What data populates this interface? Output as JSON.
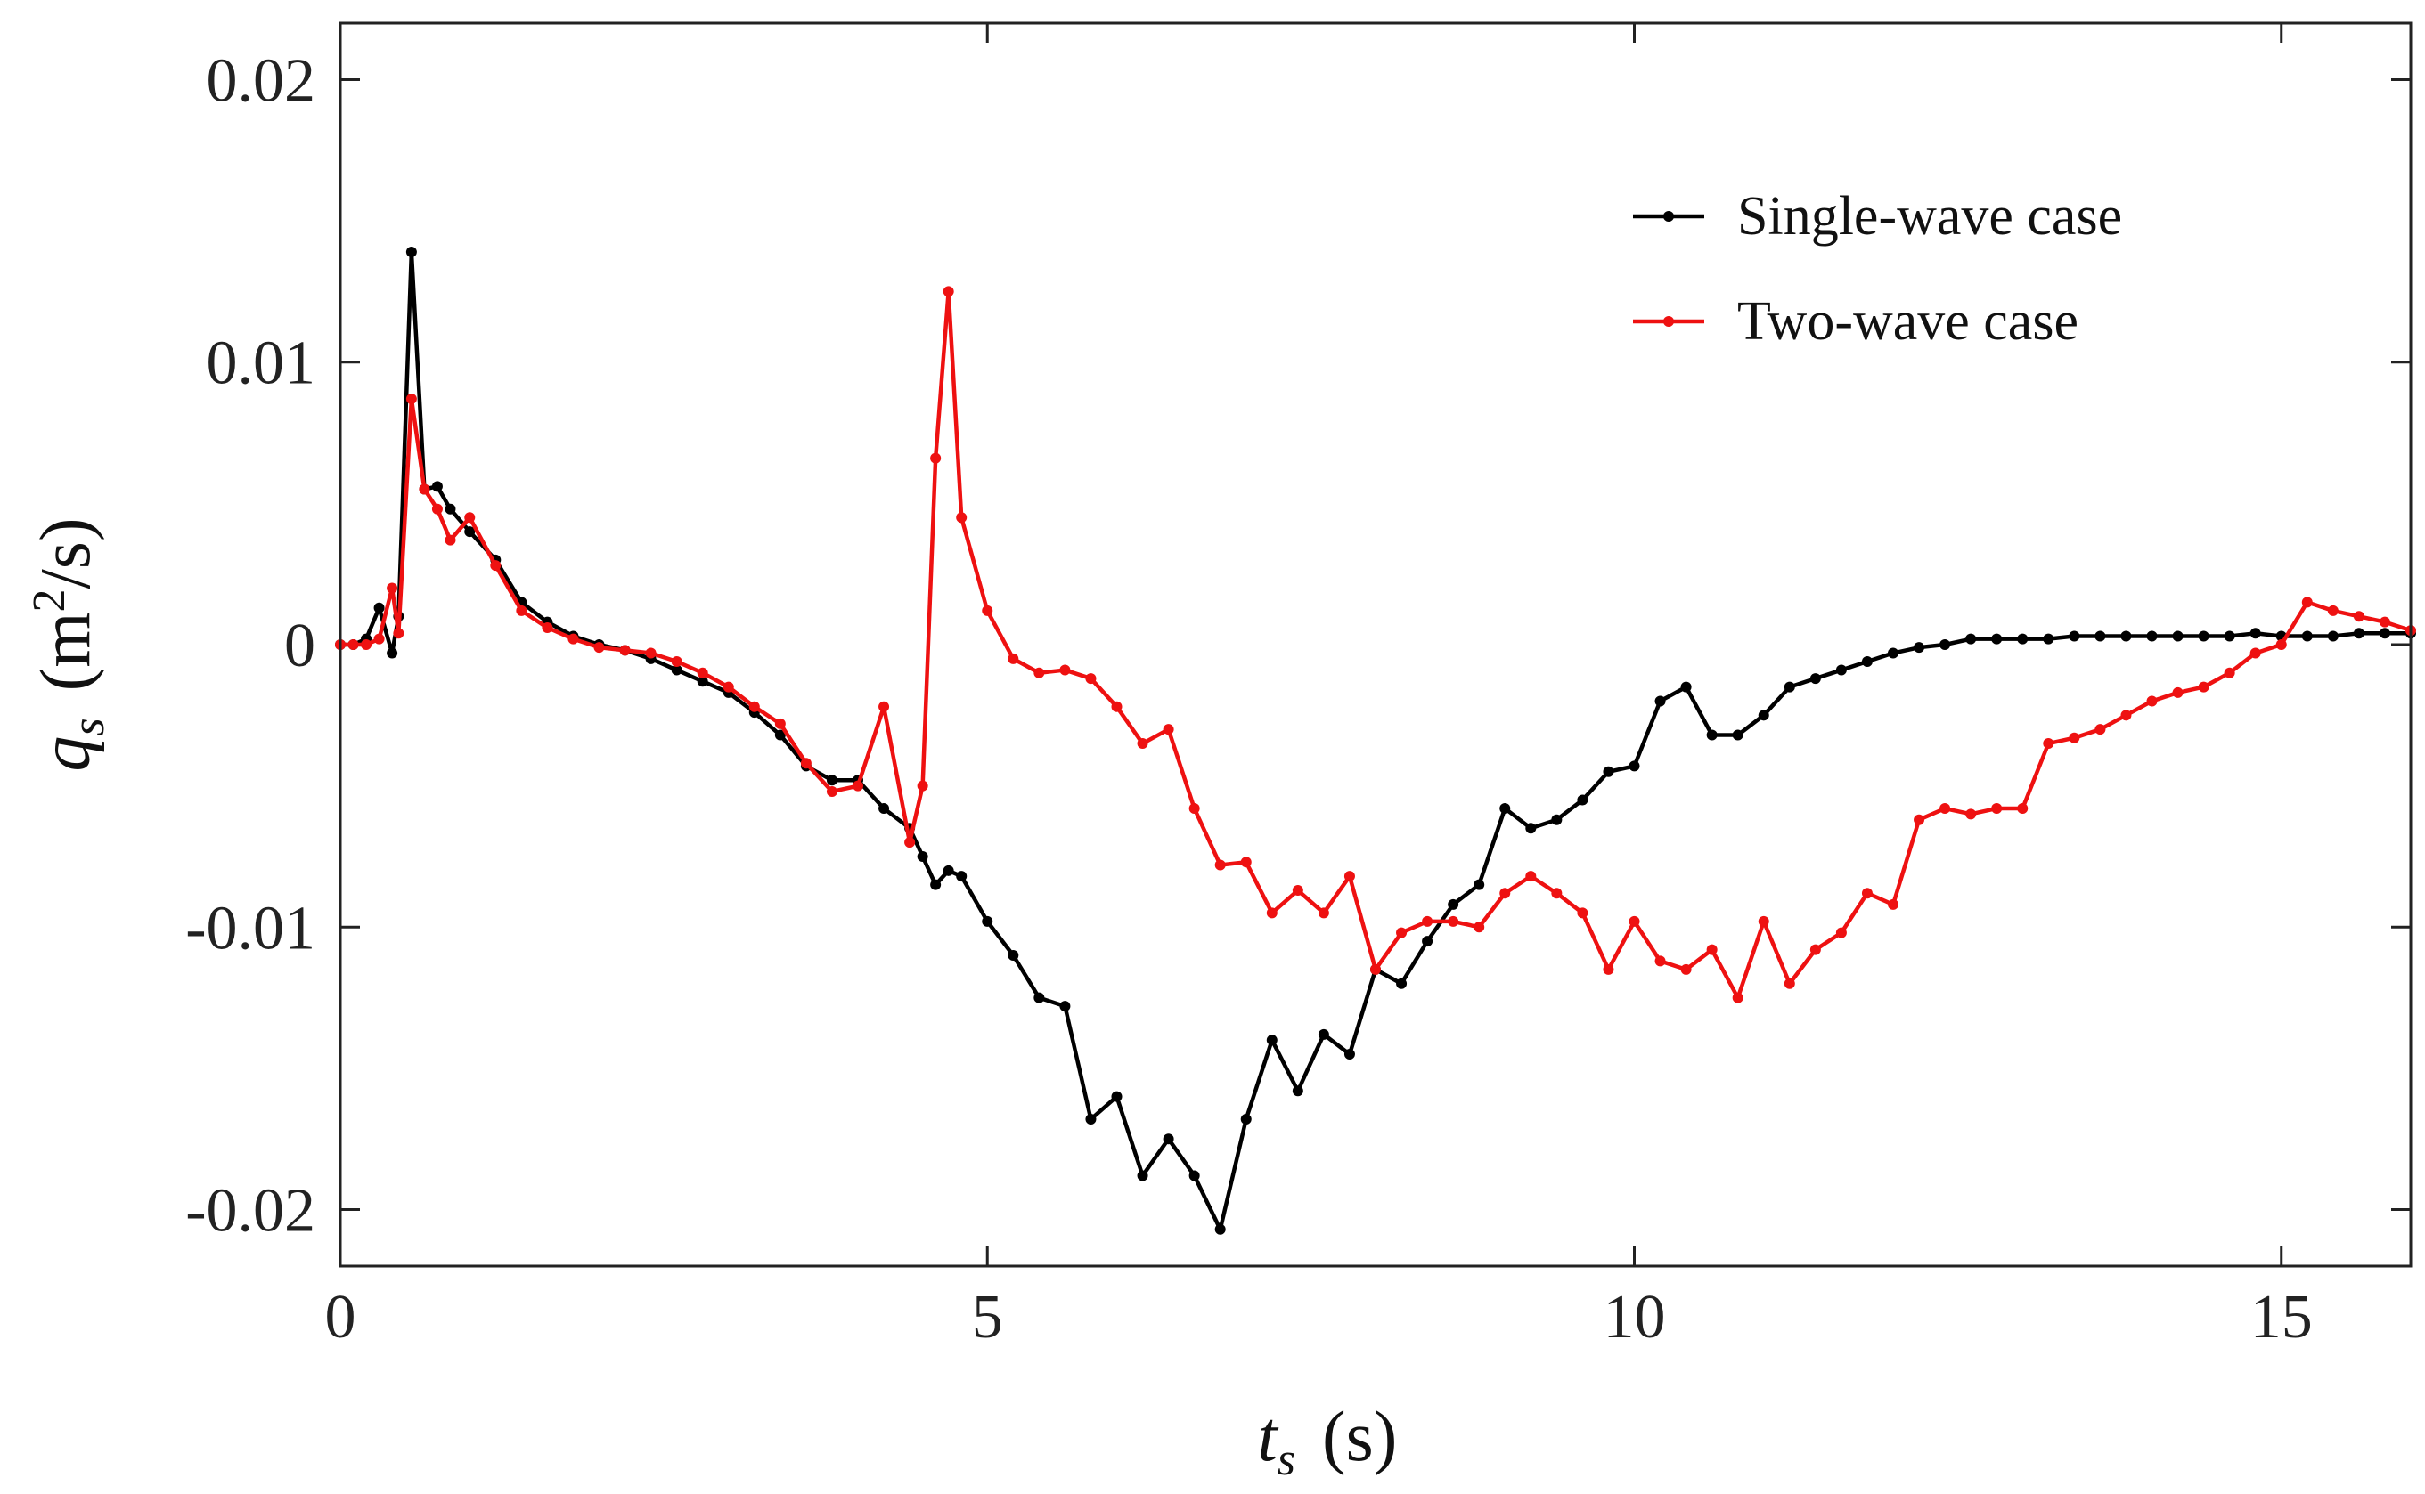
{
  "chart_data": {
    "type": "line",
    "xlabel": {
      "symbol": "t",
      "subscript": "s",
      "unit": "(s)"
    },
    "ylabel": {
      "symbol": "q",
      "subscript": "s",
      "unit_prefix": "(m",
      "superscript": "2",
      "unit_suffix": "/s)"
    },
    "xlim": [
      0,
      16
    ],
    "xticks": [
      0,
      5,
      10,
      15
    ],
    "ylim": [
      -0.022,
      0.022
    ],
    "yticks": [
      -0.02,
      -0.01,
      0,
      0.01,
      0.02
    ],
    "legend": "upper right",
    "x": [
      0,
      0.1,
      0.2,
      0.3,
      0.4,
      0.45,
      0.55,
      0.65,
      0.75,
      0.85,
      1.0,
      1.2,
      1.4,
      1.6,
      1.8,
      2.0,
      2.2,
      2.4,
      2.6,
      2.8,
      3.0,
      3.2,
      3.4,
      3.6,
      3.8,
      4.0,
      4.2,
      4.4,
      4.5,
      4.6,
      4.7,
      4.8,
      5.0,
      5.2,
      5.4,
      5.6,
      5.8,
      6.0,
      6.2,
      6.4,
      6.6,
      6.8,
      7.0,
      7.2,
      7.4,
      7.6,
      7.8,
      8.0,
      8.2,
      8.4,
      8.6,
      8.8,
      9.0,
      9.2,
      9.4,
      9.6,
      9.8,
      10.0,
      10.2,
      10.4,
      10.6,
      10.8,
      11.0,
      11.2,
      11.4,
      11.6,
      11.8,
      12.0,
      12.2,
      12.4,
      12.6,
      12.8,
      13.0,
      13.2,
      13.4,
      13.6,
      13.8,
      14.0,
      14.2,
      14.4,
      14.6,
      14.8,
      15.0,
      15.2,
      15.4,
      15.6,
      15.8,
      16.0
    ],
    "series": [
      {
        "name": "Single-wave case",
        "color": "#000000",
        "values": [
          0,
          0,
          0.0002,
          0.0013,
          -0.0003,
          0.001,
          0.0139,
          0.0055,
          0.0056,
          0.0048,
          0.004,
          0.003,
          0.0015,
          0.0008,
          0.0003,
          0,
          -0.0002,
          -0.0005,
          -0.0009,
          -0.0013,
          -0.0017,
          -0.0024,
          -0.0032,
          -0.0043,
          -0.0048,
          -0.0048,
          -0.0058,
          -0.0065,
          -0.0075,
          -0.0085,
          -0.008,
          -0.0082,
          -0.0098,
          -0.011,
          -0.0125,
          -0.0128,
          -0.0168,
          -0.016,
          -0.0188,
          -0.0175,
          -0.0188,
          -0.0207,
          -0.0168,
          -0.014,
          -0.0158,
          -0.0138,
          -0.0145,
          -0.0115,
          -0.012,
          -0.0105,
          -0.0092,
          -0.0085,
          -0.0058,
          -0.0065,
          -0.0062,
          -0.0055,
          -0.0045,
          -0.0043,
          -0.002,
          -0.0015,
          -0.0032,
          -0.0032,
          -0.0025,
          -0.0015,
          -0.0012,
          -0.0009,
          -0.0006,
          -0.0003,
          -0.0001,
          0,
          0.0002,
          0.0002,
          0.0002,
          0.0002,
          0.0003,
          0.0003,
          0.0003,
          0.0003,
          0.0003,
          0.0003,
          0.0003,
          0.0004,
          0.0003,
          0.0003,
          0.0003,
          0.0004,
          0.0004,
          0.0004
        ]
      },
      {
        "name": "Two-wave case",
        "color": "#ee1111",
        "values": [
          0,
          0,
          0,
          0.0002,
          0.002,
          0.0004,
          0.0087,
          0.0055,
          0.0048,
          0.0037,
          0.0045,
          0.0028,
          0.0012,
          0.0006,
          0.0002,
          -0.0001,
          -0.0002,
          -0.0003,
          -0.0006,
          -0.001,
          -0.0015,
          -0.0022,
          -0.0028,
          -0.0042,
          -0.0052,
          -0.005,
          -0.0022,
          -0.007,
          -0.005,
          0.0066,
          0.0125,
          0.0045,
          0.0012,
          -0.0005,
          -0.001,
          -0.0009,
          -0.0012,
          -0.0022,
          -0.0035,
          -0.003,
          -0.0058,
          -0.0078,
          -0.0077,
          -0.0095,
          -0.0087,
          -0.0095,
          -0.0082,
          -0.0115,
          -0.0102,
          -0.0098,
          -0.0098,
          -0.01,
          -0.0088,
          -0.0082,
          -0.0088,
          -0.0095,
          -0.0115,
          -0.0098,
          -0.0112,
          -0.0115,
          -0.0108,
          -0.0125,
          -0.0098,
          -0.012,
          -0.0108,
          -0.0102,
          -0.0088,
          -0.0092,
          -0.0062,
          -0.0058,
          -0.006,
          -0.0058,
          -0.0058,
          -0.0035,
          -0.0033,
          -0.003,
          -0.0025,
          -0.002,
          -0.0017,
          -0.0015,
          -0.001,
          -0.0003,
          0,
          0.0015,
          0.0012,
          0.001,
          0.0008,
          0.0005
        ]
      }
    ]
  }
}
